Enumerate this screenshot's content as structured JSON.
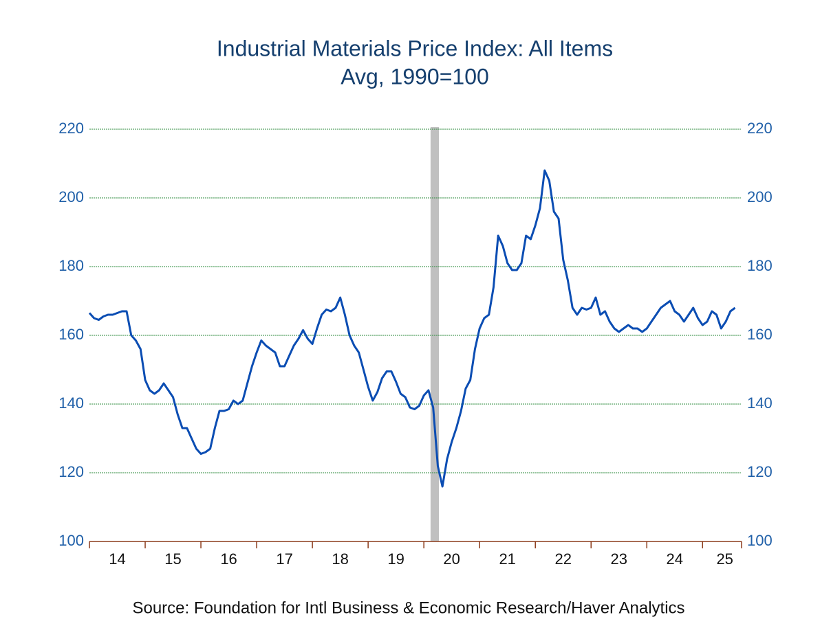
{
  "chart_data": {
    "type": "line",
    "title": "Industrial Materials Price Index: All Items",
    "subtitle": "Avg, 1990=100",
    "source": "Source:  Foundation for Intl Business & Economic Research/Haver Analytics",
    "x": [
      2014,
      2014.083,
      2014.167,
      2014.25,
      2014.333,
      2014.417,
      2014.5,
      2014.583,
      2014.667,
      2014.75,
      2014.833,
      2014.917,
      2015,
      2015.083,
      2015.167,
      2015.25,
      2015.333,
      2015.417,
      2015.5,
      2015.583,
      2015.667,
      2015.75,
      2015.833,
      2015.917,
      2016,
      2016.083,
      2016.167,
      2016.25,
      2016.333,
      2016.417,
      2016.5,
      2016.583,
      2016.667,
      2016.75,
      2016.833,
      2016.917,
      2017,
      2017.083,
      2017.167,
      2017.25,
      2017.333,
      2017.417,
      2017.5,
      2017.583,
      2017.667,
      2017.75,
      2017.833,
      2017.917,
      2018,
      2018.083,
      2018.167,
      2018.25,
      2018.333,
      2018.417,
      2018.5,
      2018.583,
      2018.667,
      2018.75,
      2018.833,
      2018.917,
      2019,
      2019.083,
      2019.167,
      2019.25,
      2019.333,
      2019.417,
      2019.5,
      2019.583,
      2019.667,
      2019.75,
      2019.833,
      2019.917,
      2020,
      2020.083,
      2020.167,
      2020.25,
      2020.333,
      2020.417,
      2020.5,
      2020.583,
      2020.667,
      2020.75,
      2020.833,
      2020.917,
      2021,
      2021.083,
      2021.167,
      2021.25,
      2021.333,
      2021.417,
      2021.5,
      2021.583,
      2021.667,
      2021.75,
      2021.833,
      2021.917,
      2022,
      2022.083,
      2022.167,
      2022.25,
      2022.333,
      2022.417,
      2022.5,
      2022.583,
      2022.667,
      2022.75,
      2022.833,
      2022.917,
      2023,
      2023.083,
      2023.167,
      2023.25,
      2023.333,
      2023.417,
      2023.5,
      2023.583,
      2023.667,
      2023.75,
      2023.833,
      2023.917,
      2024,
      2024.083,
      2024.167,
      2024.25,
      2024.333,
      2024.417,
      2024.5,
      2024.583,
      2024.667,
      2024.75,
      2024.833,
      2024.917,
      2025,
      2025.083,
      2025.167,
      2025.25,
      2025.333,
      2025.417,
      2025.5,
      2025.583
    ],
    "series": [
      {
        "name": "Industrial Materials Price Index",
        "color": "#0b4db3",
        "values": [
          166.5,
          165,
          164.5,
          165.5,
          166,
          166,
          166.5,
          167,
          167,
          160,
          158.5,
          156,
          147,
          144,
          143,
          144,
          146,
          144,
          142,
          137,
          133,
          133,
          130,
          127,
          125.5,
          126,
          127,
          133,
          138,
          138,
          138.5,
          141,
          140,
          141,
          146,
          151,
          155,
          158.5,
          157,
          156,
          155,
          151,
          151,
          154,
          157,
          159,
          161.5,
          159,
          157.5,
          162,
          166,
          167.5,
          167,
          168,
          171,
          166,
          160,
          157,
          155,
          150,
          145,
          141,
          143.5,
          147.5,
          149.5,
          149.5,
          146.5,
          143,
          142,
          139,
          138.5,
          139.5,
          142.5,
          144,
          139,
          122,
          116,
          124,
          129,
          133,
          138,
          144.5,
          147,
          156,
          162,
          165,
          166,
          174,
          189,
          186,
          181,
          179,
          179,
          181,
          189,
          188,
          192,
          197,
          208,
          205,
          196,
          194,
          182,
          176,
          168,
          166,
          168,
          167.5,
          168,
          171,
          166,
          167,
          164,
          162,
          161,
          162,
          163,
          162,
          162,
          161,
          162,
          164,
          166,
          168,
          169,
          170,
          167,
          166,
          164,
          166,
          168,
          165,
          163,
          164,
          167,
          166,
          162,
          164,
          167,
          168
        ]
      }
    ],
    "recession": [
      2020.12,
      2020.27
    ],
    "xlim": [
      2014,
      2025.7
    ],
    "xticks": [
      {
        "value": 2014.5,
        "label": "14"
      },
      {
        "value": 2015.5,
        "label": "15"
      },
      {
        "value": 2016.5,
        "label": "16"
      },
      {
        "value": 2017.5,
        "label": "17"
      },
      {
        "value": 2018.5,
        "label": "18"
      },
      {
        "value": 2019.5,
        "label": "19"
      },
      {
        "value": 2020.5,
        "label": "20"
      },
      {
        "value": 2021.5,
        "label": "21"
      },
      {
        "value": 2022.5,
        "label": "22"
      },
      {
        "value": 2023.5,
        "label": "23"
      },
      {
        "value": 2024.5,
        "label": "24"
      },
      {
        "value": 2025.4,
        "label": "25"
      }
    ],
    "ylim": [
      100,
      220
    ],
    "yticks": [
      100,
      120,
      140,
      160,
      180,
      200,
      220
    ],
    "y2lim": [
      100,
      220
    ],
    "y2ticks": [
      100,
      120,
      140,
      160,
      180,
      200,
      220
    ],
    "grid": true
  }
}
